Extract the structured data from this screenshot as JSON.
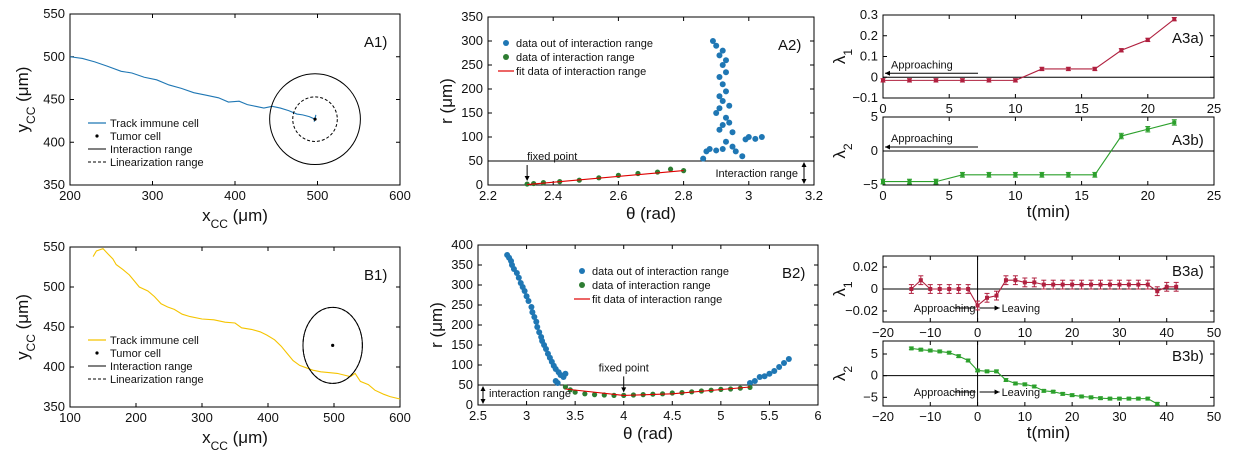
{
  "chart_data": [
    {
      "type": "line",
      "panel": "A1)",
      "xlabel": "x",
      "xlabel_sub": "CC",
      "xlabel_unit": " (μm)",
      "ylabel": "y",
      "ylabel_sub": "CC",
      "ylabel_unit": " (μm)",
      "xlim": [
        200,
        600
      ],
      "ylim": [
        350,
        550
      ],
      "xticks": [
        200,
        300,
        400,
        500,
        600
      ],
      "yticks": [
        350,
        400,
        450,
        500,
        550
      ],
      "legend": [
        "Track immune cell",
        "Tumor cell",
        "Interaction range",
        "Linearization range"
      ],
      "track_color": "#1f77b4",
      "tumor": {
        "x": 497,
        "y": 427
      },
      "interaction_radius_x": 55,
      "linearization_radius_x": 27,
      "track": [
        [
          200,
          500
        ],
        [
          215,
          498
        ],
        [
          230,
          494
        ],
        [
          245,
          489
        ],
        [
          262,
          483
        ],
        [
          275,
          481
        ],
        [
          290,
          476
        ],
        [
          305,
          473
        ],
        [
          320,
          467
        ],
        [
          335,
          463
        ],
        [
          350,
          458
        ],
        [
          365,
          455
        ],
        [
          380,
          452
        ],
        [
          392,
          447
        ],
        [
          405,
          448
        ],
        [
          415,
          444
        ],
        [
          425,
          442
        ],
        [
          435,
          440
        ],
        [
          445,
          442
        ],
        [
          455,
          440
        ],
        [
          465,
          437
        ],
        [
          475,
          433
        ],
        [
          482,
          432
        ],
        [
          490,
          430
        ],
        [
          497,
          427
        ],
        [
          498,
          432
        ],
        [
          496,
          424
        ]
      ]
    },
    {
      "type": "scatter",
      "panel": "A2)",
      "xlabel": "θ (rad)",
      "ylabel": "r (μm)",
      "xlim": [
        2.2,
        3.2
      ],
      "ylim": [
        0,
        350
      ],
      "xticks": [
        2.2,
        2.4,
        2.6,
        2.8,
        3,
        3.2
      ],
      "yticks": [
        0,
        50,
        100,
        150,
        200,
        250,
        300,
        350
      ],
      "legend": [
        "data out of interaction range",
        "data of interaction range",
        "fit data of interaction range"
      ],
      "interaction_range_r": 50,
      "annotations": [
        "fixed point",
        "Interaction range"
      ],
      "out_points": [
        [
          2.86,
          55
        ],
        [
          2.88,
          75
        ],
        [
          2.87,
          70
        ],
        [
          2.9,
          72
        ],
        [
          2.92,
          75
        ],
        [
          2.95,
          80
        ],
        [
          2.93,
          90
        ],
        [
          2.96,
          70
        ],
        [
          2.98,
          60
        ],
        [
          2.99,
          95
        ],
        [
          3.0,
          100
        ],
        [
          3.02,
          96
        ],
        [
          3.04,
          100
        ],
        [
          2.95,
          110
        ],
        [
          2.91,
          115
        ],
        [
          2.92,
          125
        ],
        [
          2.94,
          130
        ],
        [
          2.93,
          140
        ],
        [
          2.9,
          150
        ],
        [
          2.91,
          160
        ],
        [
          2.94,
          165
        ],
        [
          2.92,
          175
        ],
        [
          2.91,
          185
        ],
        [
          2.93,
          195
        ],
        [
          2.92,
          210
        ],
        [
          2.91,
          225
        ],
        [
          2.93,
          235
        ],
        [
          2.92,
          250
        ],
        [
          2.93,
          260
        ],
        [
          2.91,
          270
        ],
        [
          2.92,
          280
        ],
        [
          2.9,
          290
        ],
        [
          2.89,
          300
        ]
      ],
      "in_points": [
        [
          2.32,
          2
        ],
        [
          2.34,
          3
        ],
        [
          2.37,
          5
        ],
        [
          2.42,
          7
        ],
        [
          2.48,
          10
        ],
        [
          2.54,
          15
        ],
        [
          2.6,
          20
        ],
        [
          2.66,
          24
        ],
        [
          2.72,
          27
        ],
        [
          2.76,
          33
        ],
        [
          2.8,
          30
        ]
      ],
      "fit_line": [
        [
          2.32,
          1
        ],
        [
          2.8,
          30
        ]
      ],
      "fixed_point": {
        "x": 2.32,
        "y": 2
      }
    },
    {
      "type": "line",
      "panel": "A3a)",
      "xlabel": "",
      "ylabel": "λ",
      "ylabel_sub": "1",
      "xlim": [
        0,
        25
      ],
      "ylim": [
        -0.1,
        0.3
      ],
      "xticks": [
        0,
        5,
        10,
        15,
        20,
        25
      ],
      "yticks": [
        -0.1,
        0,
        0.1,
        0.2,
        0.3
      ],
      "color": "#b0203f",
      "annotation": "Approaching",
      "x": [
        0,
        2,
        4,
        6,
        8,
        10,
        12,
        14,
        16,
        18,
        20,
        22
      ],
      "y": [
        -0.015,
        -0.015,
        -0.015,
        -0.015,
        -0.015,
        -0.015,
        0.04,
        0.04,
        0.04,
        0.13,
        0.18,
        0.28
      ],
      "err": [
        0.008,
        0.008,
        0.008,
        0.008,
        0.008,
        0.008,
        0.008,
        0.008,
        0.008,
        0.008,
        0.008,
        0.008
      ]
    },
    {
      "type": "line",
      "panel": "A3b)",
      "xlabel": "t(min)",
      "ylabel": "λ",
      "ylabel_sub": "2",
      "xlim": [
        0,
        25
      ],
      "ylim": [
        -5,
        5
      ],
      "xticks": [
        0,
        5,
        10,
        15,
        20,
        25
      ],
      "yticks": [
        -5,
        0,
        5
      ],
      "color": "#2ca02c",
      "annotation": "Approaching",
      "x": [
        0,
        2,
        4,
        6,
        8,
        10,
        12,
        14,
        16,
        18,
        20,
        22
      ],
      "y": [
        -4.5,
        -4.5,
        -4.5,
        -3.5,
        -3.5,
        -3.5,
        -3.5,
        -3.5,
        -3.5,
        2.2,
        3.2,
        4.2
      ],
      "err": [
        0.35,
        0.35,
        0.35,
        0.35,
        0.35,
        0.35,
        0.35,
        0.35,
        0.35,
        0.4,
        0.4,
        0.4
      ]
    },
    {
      "type": "line",
      "panel": "B1)",
      "xlabel": "x",
      "xlabel_sub": "CC",
      "xlabel_unit": " (μm)",
      "ylabel": "y",
      "ylabel_sub": "CC",
      "ylabel_unit": " (μm)",
      "xlim": [
        100,
        600
      ],
      "ylim": [
        350,
        550
      ],
      "xticks": [
        100,
        200,
        300,
        400,
        500,
        600
      ],
      "yticks": [
        350,
        400,
        450,
        500,
        550
      ],
      "legend": [
        "Track immune cell",
        "Tumor cell",
        "Interaction range",
        "Linearization range"
      ],
      "track_color": "#f5c400",
      "tumor": {
        "x": 498,
        "y": 427
      },
      "interaction_radius_x": 45,
      "linearization_radius_x": 45,
      "track": [
        [
          135,
          538
        ],
        [
          140,
          545
        ],
        [
          150,
          548
        ],
        [
          158,
          541
        ],
        [
          165,
          535
        ],
        [
          170,
          528
        ],
        [
          180,
          522
        ],
        [
          190,
          515
        ],
        [
          198,
          507
        ],
        [
          205,
          500
        ],
        [
          218,
          495
        ],
        [
          228,
          488
        ],
        [
          238,
          479
        ],
        [
          248,
          475
        ],
        [
          258,
          472
        ],
        [
          270,
          466
        ],
        [
          282,
          463
        ],
        [
          300,
          460
        ],
        [
          318,
          459
        ],
        [
          335,
          456
        ],
        [
          350,
          455
        ],
        [
          360,
          449
        ],
        [
          375,
          447
        ],
        [
          388,
          444
        ],
        [
          398,
          440
        ],
        [
          410,
          434
        ],
        [
          420,
          426
        ],
        [
          428,
          418
        ],
        [
          438,
          408
        ],
        [
          448,
          402
        ],
        [
          458,
          399
        ],
        [
          468,
          396
        ],
        [
          480,
          394
        ],
        [
          492,
          393
        ],
        [
          505,
          392
        ],
        [
          515,
          390
        ],
        [
          525,
          388
        ],
        [
          532,
          392
        ],
        [
          540,
          382
        ],
        [
          552,
          378
        ],
        [
          562,
          371
        ],
        [
          575,
          366
        ],
        [
          585,
          363
        ],
        [
          600,
          360
        ]
      ]
    },
    {
      "type": "scatter",
      "panel": "B2)",
      "xlabel": "θ (rad)",
      "ylabel": "r (μm)",
      "xlim": [
        2.5,
        6
      ],
      "ylim": [
        0,
        400
      ],
      "xticks": [
        2.5,
        3,
        3.5,
        4,
        4.5,
        5,
        5.5,
        6
      ],
      "yticks": [
        0,
        50,
        100,
        150,
        200,
        250,
        300,
        350,
        400
      ],
      "legend": [
        "data out of interaction range",
        "data of interaction range",
        "fit data of interaction range"
      ],
      "interaction_range_r": 50,
      "annotations": [
        "fixed point",
        "interaction range"
      ],
      "out_points": [
        [
          2.8,
          375
        ],
        [
          2.82,
          368
        ],
        [
          2.84,
          360
        ],
        [
          2.85,
          350
        ],
        [
          2.87,
          340
        ],
        [
          2.9,
          330
        ],
        [
          2.92,
          318
        ],
        [
          2.94,
          305
        ],
        [
          2.96,
          295
        ],
        [
          2.98,
          285
        ],
        [
          3.0,
          272
        ],
        [
          3.02,
          260
        ],
        [
          3.05,
          245
        ],
        [
          3.06,
          232
        ],
        [
          3.08,
          220
        ],
        [
          3.1,
          208
        ],
        [
          3.11,
          195
        ],
        [
          3.13,
          182
        ],
        [
          3.15,
          170
        ],
        [
          3.16,
          160
        ],
        [
          3.18,
          150
        ],
        [
          3.2,
          140
        ],
        [
          3.22,
          128
        ],
        [
          3.24,
          118
        ],
        [
          3.26,
          108
        ],
        [
          3.28,
          98
        ],
        [
          3.3,
          90
        ],
        [
          3.33,
          82
        ],
        [
          3.35,
          75
        ],
        [
          3.38,
          70
        ],
        [
          3.4,
          78
        ],
        [
          3.3,
          60
        ],
        [
          3.32,
          55
        ],
        [
          5.3,
          55
        ],
        [
          5.35,
          60
        ],
        [
          5.4,
          70
        ],
        [
          5.45,
          72
        ],
        [
          5.5,
          78
        ],
        [
          5.55,
          85
        ],
        [
          5.6,
          95
        ],
        [
          5.65,
          105
        ],
        [
          5.7,
          115
        ]
      ],
      "in_points": [
        [
          3.4,
          45
        ],
        [
          3.45,
          38
        ],
        [
          3.5,
          32
        ],
        [
          3.6,
          28
        ],
        [
          3.7,
          26
        ],
        [
          3.8,
          25
        ],
        [
          3.9,
          24
        ],
        [
          4.0,
          24
        ],
        [
          4.1,
          25
        ],
        [
          4.2,
          26
        ],
        [
          4.3,
          27
        ],
        [
          4.4,
          28
        ],
        [
          4.5,
          30
        ],
        [
          4.6,
          31
        ],
        [
          4.7,
          33
        ],
        [
          4.8,
          35
        ],
        [
          4.9,
          37
        ],
        [
          5.0,
          39
        ],
        [
          5.1,
          40
        ],
        [
          5.2,
          42
        ],
        [
          5.3,
          44
        ]
      ],
      "fit_line": [
        [
          3.4,
          40
        ],
        [
          4.0,
          24
        ],
        [
          4.5,
          28
        ],
        [
          5.3,
          45
        ]
      ],
      "fixed_point": {
        "x": 4.0,
        "y": 24
      }
    },
    {
      "type": "line",
      "panel": "B3a)",
      "xlabel": "",
      "ylabel": "λ",
      "ylabel_sub": "1",
      "xlim": [
        -20,
        50
      ],
      "ylim": [
        -0.03,
        0.03
      ],
      "xticks": [
        -20,
        -10,
        0,
        10,
        20,
        30,
        40,
        50
      ],
      "yticks": [
        -0.02,
        0,
        0.02
      ],
      "color": "#b0203f",
      "annotations": [
        "Approaching",
        "Leaving"
      ],
      "x": [
        -14,
        -12,
        -10,
        -8,
        -6,
        -4,
        -2,
        0,
        2,
        4,
        6,
        8,
        10,
        12,
        14,
        16,
        18,
        20,
        22,
        24,
        26,
        28,
        30,
        32,
        34,
        36,
        38,
        40,
        42
      ],
      "y": [
        0,
        0.008,
        0,
        0,
        0,
        0,
        0,
        -0.015,
        -0.008,
        -0.006,
        0.008,
        0.008,
        0.006,
        0.006,
        0.004,
        0.004,
        0.004,
        0.004,
        0.004,
        0.004,
        0.004,
        0.004,
        0.004,
        0.004,
        0.004,
        0.004,
        -0.002,
        0.002,
        0.002
      ],
      "err": [
        0.004,
        0.004,
        0.004,
        0.004,
        0.004,
        0.004,
        0.004,
        0.004,
        0.004,
        0.004,
        0.004,
        0.004,
        0.004,
        0.004,
        0.004,
        0.004,
        0.004,
        0.004,
        0.004,
        0.004,
        0.004,
        0.004,
        0.004,
        0.004,
        0.004,
        0.004,
        0.004,
        0.004,
        0.004
      ]
    },
    {
      "type": "line",
      "panel": "B3b)",
      "xlabel": "t(min)",
      "ylabel": "λ",
      "ylabel_sub": "2",
      "xlim": [
        -20,
        50
      ],
      "ylim": [
        -7,
        8
      ],
      "xticks": [
        -20,
        -10,
        0,
        10,
        20,
        30,
        40,
        50
      ],
      "yticks": [
        -5,
        0,
        5
      ],
      "color": "#2ca02c",
      "annotations": [
        "Approaching",
        "Leaving"
      ],
      "x": [
        -14,
        -12,
        -10,
        -8,
        -6,
        -4,
        -2,
        0,
        2,
        4,
        6,
        8,
        10,
        12,
        14,
        16,
        18,
        20,
        22,
        24,
        26,
        28,
        30,
        32,
        34,
        36,
        38
      ],
      "y": [
        6.3,
        6.0,
        5.8,
        5.6,
        5.3,
        4.5,
        3.5,
        1.2,
        1.0,
        1.0,
        -1.0,
        -1.8,
        -2.0,
        -2.5,
        -3.5,
        -3.7,
        -4.2,
        -4.5,
        -4.8,
        -5.0,
        -5.2,
        -5.3,
        -5.3,
        -5.3,
        -5.3,
        -5.3,
        -6.5
      ],
      "err": [
        0.3,
        0.3,
        0.3,
        0.3,
        0.3,
        0.3,
        0.3,
        0.3,
        0.3,
        0.3,
        0.3,
        0.3,
        0.3,
        0.3,
        0.3,
        0.3,
        0.3,
        0.3,
        0.3,
        0.3,
        0.3,
        0.3,
        0.3,
        0.3,
        0.3,
        0.3,
        0.3
      ]
    }
  ]
}
